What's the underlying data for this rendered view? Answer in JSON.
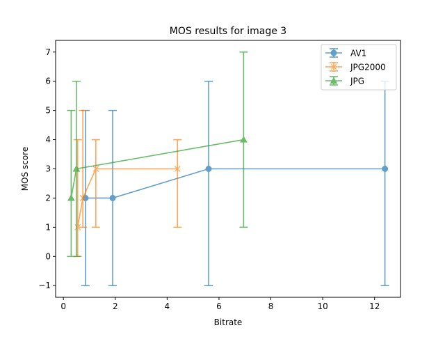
{
  "chart_data": {
    "type": "line",
    "title": "MOS results for image 3",
    "xlabel": "Bitrate",
    "ylabel": "MOS score",
    "xlim": [
      -0.3,
      13.0
    ],
    "ylim": [
      -1.4,
      7.4
    ],
    "xticks": [
      0,
      2,
      4,
      6,
      8,
      10,
      12
    ],
    "yticks": [
      -1,
      0,
      1,
      2,
      3,
      4,
      5,
      6,
      7
    ],
    "xtick_labels": [
      "0",
      "2",
      "4",
      "6",
      "8",
      "10",
      "12"
    ],
    "ytick_labels": [
      "−1",
      "0",
      "1",
      "2",
      "3",
      "4",
      "5",
      "6",
      "7"
    ],
    "grid": false,
    "legend_position": "top-right",
    "series": [
      {
        "name": "AV1",
        "marker": "circle",
        "color": "#1f77b4",
        "points": [
          {
            "x": 0.85,
            "y": 2,
            "err_low": -1,
            "err_high": 5
          },
          {
            "x": 1.9,
            "y": 2,
            "err_low": -1,
            "err_high": 5
          },
          {
            "x": 5.6,
            "y": 3,
            "err_low": -1,
            "err_high": 6
          },
          {
            "x": 12.4,
            "y": 3,
            "err_low": -1,
            "err_high": 6
          }
        ]
      },
      {
        "name": "JPG2000",
        "marker": "x",
        "color": "#ff7f0e",
        "points": [
          {
            "x": 0.55,
            "y": 1,
            "err_low": 0,
            "err_high": 4
          },
          {
            "x": 0.75,
            "y": 2,
            "err_low": 1,
            "err_high": 5
          },
          {
            "x": 1.25,
            "y": 3,
            "err_low": 1,
            "err_high": 4
          },
          {
            "x": 4.4,
            "y": 3,
            "err_low": 1,
            "err_high": 4
          }
        ]
      },
      {
        "name": "JPG",
        "marker": "triangle",
        "color": "#2ca02c",
        "points": [
          {
            "x": 0.3,
            "y": 2,
            "err_low": 0,
            "err_high": 5
          },
          {
            "x": 0.5,
            "y": 3,
            "err_low": 0,
            "err_high": 6
          },
          {
            "x": 6.95,
            "y": 4,
            "err_low": 1,
            "err_high": 7
          }
        ]
      }
    ]
  }
}
